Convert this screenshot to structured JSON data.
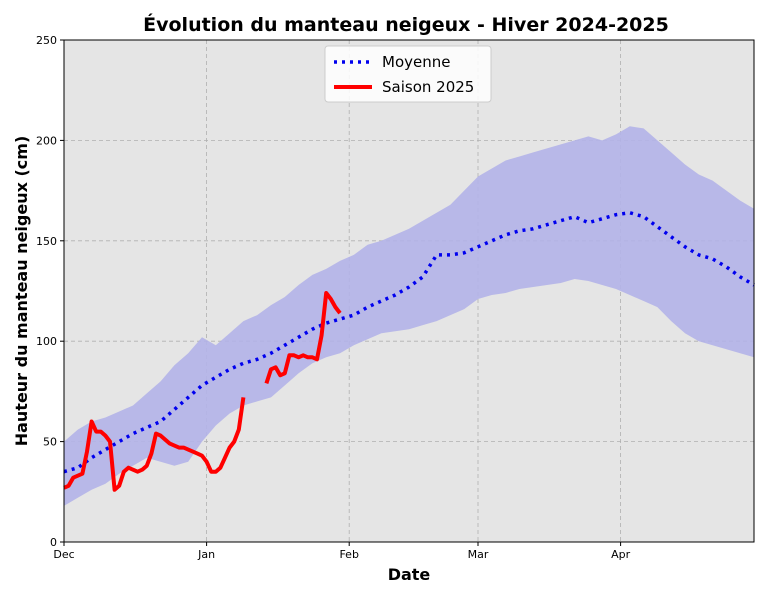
{
  "chart_data": {
    "type": "line",
    "title": "Évolution du manteau neigeux - Hiver 2024-2025",
    "xlabel": "Date",
    "ylabel": "Hauteur du manteau neigeux (cm)",
    "ylim": [
      0,
      250
    ],
    "yticks": [
      0,
      50,
      100,
      150,
      200,
      250
    ],
    "xlim": [
      "2024-12-01",
      "2025-04-30"
    ],
    "xticks": [
      {
        "date": "2024-12-01",
        "label": "Dec"
      },
      {
        "date": "2025-01-01",
        "label": "Jan"
      },
      {
        "date": "2025-02-01",
        "label": "Feb"
      },
      {
        "date": "2025-03-01",
        "label": "Mar"
      },
      {
        "date": "2025-04-01",
        "label": "Apr"
      }
    ],
    "grid": true,
    "legend_position": "top-center",
    "background_color": "#e5e5e5",
    "colors": {
      "mean": "#0000ee",
      "band": "#b3b3e8",
      "season": "#ff0000"
    },
    "band": {
      "x": [
        "2024-12-01",
        "2024-12-04",
        "2024-12-07",
        "2024-12-10",
        "2024-12-13",
        "2024-12-16",
        "2024-12-19",
        "2024-12-22",
        "2024-12-25",
        "2024-12-28",
        "2024-12-31",
        "2025-01-03",
        "2025-01-06",
        "2025-01-09",
        "2025-01-12",
        "2025-01-15",
        "2025-01-18",
        "2025-01-21",
        "2025-01-24",
        "2025-01-27",
        "2025-01-30",
        "2025-02-02",
        "2025-02-05",
        "2025-02-08",
        "2025-02-11",
        "2025-02-14",
        "2025-02-17",
        "2025-02-20",
        "2025-02-23",
        "2025-02-26",
        "2025-03-01",
        "2025-03-04",
        "2025-03-07",
        "2025-03-10",
        "2025-03-13",
        "2025-03-16",
        "2025-03-19",
        "2025-03-22",
        "2025-03-25",
        "2025-03-28",
        "2025-03-31",
        "2025-04-03",
        "2025-04-06",
        "2025-04-09",
        "2025-04-12",
        "2025-04-15",
        "2025-04-18",
        "2025-04-21",
        "2025-04-24",
        "2025-04-27",
        "2025-04-30"
      ],
      "upper": [
        50,
        56,
        60,
        62,
        65,
        68,
        74,
        80,
        88,
        94,
        102,
        98,
        104,
        110,
        113,
        118,
        122,
        128,
        133,
        136,
        140,
        143,
        148,
        150,
        153,
        156,
        160,
        164,
        168,
        175,
        182,
        186,
        190,
        192,
        194,
        196,
        198,
        200,
        202,
        200,
        203,
        207,
        206,
        200,
        194,
        188,
        183,
        180,
        175,
        170,
        166
      ],
      "lower": [
        18,
        22,
        26,
        29,
        34,
        38,
        42,
        40,
        38,
        40,
        50,
        58,
        64,
        68,
        70,
        72,
        78,
        84,
        89,
        92,
        94,
        98,
        101,
        104,
        105,
        106,
        108,
        110,
        113,
        116,
        121,
        123,
        124,
        126,
        127,
        128,
        129,
        131,
        130,
        128,
        126,
        123,
        120,
        117,
        110,
        104,
        100,
        98,
        96,
        94,
        92
      ]
    },
    "series": [
      {
        "name": "Moyenne",
        "style": "dotted",
        "x": [
          "2024-12-01",
          "2024-12-04",
          "2024-12-07",
          "2024-12-10",
          "2024-12-13",
          "2024-12-16",
          "2024-12-19",
          "2024-12-22",
          "2024-12-25",
          "2024-12-28",
          "2024-12-31",
          "2025-01-03",
          "2025-01-06",
          "2025-01-09",
          "2025-01-12",
          "2025-01-15",
          "2025-01-18",
          "2025-01-21",
          "2025-01-24",
          "2025-01-27",
          "2025-01-30",
          "2025-02-02",
          "2025-02-05",
          "2025-02-08",
          "2025-02-11",
          "2025-02-14",
          "2025-02-17",
          "2025-02-20",
          "2025-02-23",
          "2025-02-26",
          "2025-03-01",
          "2025-03-04",
          "2025-03-07",
          "2025-03-10",
          "2025-03-13",
          "2025-03-16",
          "2025-03-19",
          "2025-03-22",
          "2025-03-25",
          "2025-03-28",
          "2025-03-31",
          "2025-04-03",
          "2025-04-06",
          "2025-04-09",
          "2025-04-12",
          "2025-04-15",
          "2025-04-18",
          "2025-04-21",
          "2025-04-24",
          "2025-04-27",
          "2025-04-30"
        ],
        "values": [
          35,
          37,
          42,
          46,
          50,
          54,
          57,
          60,
          66,
          72,
          78,
          82,
          86,
          89,
          91,
          94,
          98,
          102,
          106,
          109,
          111,
          113,
          117,
          120,
          123,
          127,
          132,
          143,
          143,
          144,
          147,
          150,
          153,
          155,
          156,
          158,
          160,
          162,
          159,
          161,
          163,
          164,
          162,
          157,
          152,
          147,
          143,
          141,
          137,
          132,
          128
        ]
      },
      {
        "name": "Saison 2025",
        "style": "solid",
        "segments": [
          {
            "x": [
              "2024-12-01",
              "2024-12-02",
              "2024-12-03",
              "2024-12-04",
              "2024-12-05",
              "2024-12-06",
              "2024-12-07",
              "2024-12-08",
              "2024-12-09",
              "2024-12-10",
              "2024-12-11",
              "2024-12-12",
              "2024-12-13",
              "2024-12-14",
              "2024-12-15",
              "2024-12-16",
              "2024-12-17",
              "2024-12-18",
              "2024-12-19",
              "2024-12-20",
              "2024-12-21",
              "2024-12-22",
              "2024-12-23",
              "2024-12-24",
              "2024-12-25",
              "2024-12-26",
              "2024-12-27",
              "2024-12-28",
              "2024-12-29",
              "2024-12-30",
              "2024-12-31",
              "2025-01-01",
              "2025-01-02",
              "2025-01-03",
              "2025-01-04",
              "2025-01-05",
              "2025-01-06",
              "2025-01-07",
              "2025-01-08",
              "2025-01-09"
            ],
            "values": [
              27,
              28,
              32,
              33,
              34,
              45,
              60,
              55,
              55,
              53,
              50,
              26,
              28,
              35,
              37,
              36,
              35,
              36,
              38,
              44,
              54,
              53,
              51,
              49,
              48,
              47,
              47,
              46,
              45,
              44,
              43,
              40,
              35,
              35,
              37,
              42,
              47,
              50,
              56,
              72
            ]
          },
          {
            "x": [
              "2025-01-14",
              "2025-01-15",
              "2025-01-16",
              "2025-01-17",
              "2025-01-18",
              "2025-01-19",
              "2025-01-20",
              "2025-01-21",
              "2025-01-22",
              "2025-01-23",
              "2025-01-24",
              "2025-01-25",
              "2025-01-26",
              "2025-01-27",
              "2025-01-28",
              "2025-01-29",
              "2025-01-30"
            ],
            "values": [
              79,
              86,
              87,
              83,
              84,
              93,
              93,
              92,
              93,
              92,
              92,
              91,
              103,
              124,
              121,
              117,
              114
            ]
          }
        ]
      }
    ]
  }
}
